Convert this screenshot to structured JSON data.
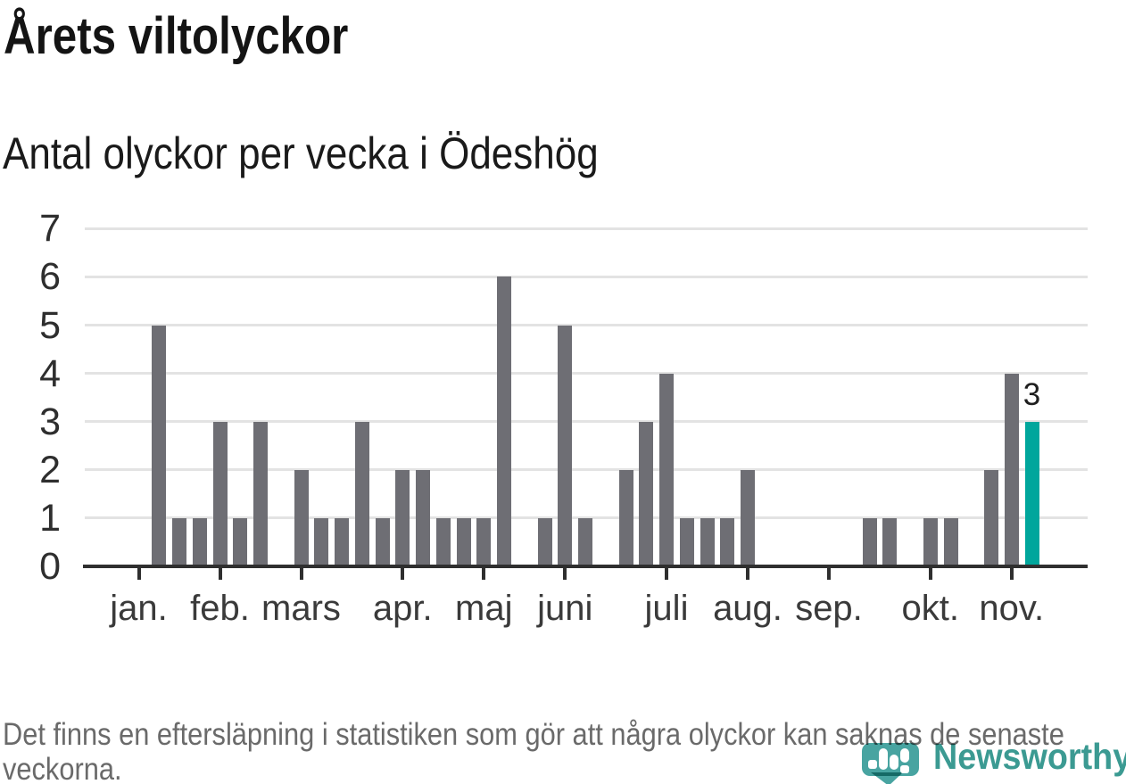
{
  "header": {
    "title": "Årets viltolyckor",
    "subtitle": "Antal olyckor per vecka i Ödeshög"
  },
  "chart_data": {
    "type": "bar",
    "title": "Årets viltolyckor",
    "subtitle": "Antal olyckor per vecka i Ödeshög",
    "x_unit": "week (jan.–nov.)",
    "ylabel": "",
    "xlabel": "",
    "values": [
      0,
      5,
      1,
      1,
      3,
      1,
      3,
      0,
      2,
      1,
      1,
      3,
      1,
      2,
      2,
      1,
      1,
      1,
      6,
      0,
      1,
      5,
      1,
      0,
      2,
      3,
      4,
      1,
      1,
      1,
      2,
      0,
      0,
      0,
      0,
      0,
      1,
      1,
      0,
      1,
      1,
      0,
      2,
      4,
      3
    ],
    "month_ticks": [
      {
        "week_index": 0,
        "label": "jan."
      },
      {
        "week_index": 4,
        "label": "feb."
      },
      {
        "week_index": 8,
        "label": "mars"
      },
      {
        "week_index": 13,
        "label": "apr."
      },
      {
        "week_index": 17,
        "label": "maj"
      },
      {
        "week_index": 21,
        "label": "juni"
      },
      {
        "week_index": 26,
        "label": "juli"
      },
      {
        "week_index": 30,
        "label": "aug."
      },
      {
        "week_index": 34,
        "label": "sep."
      },
      {
        "week_index": 39,
        "label": "okt."
      },
      {
        "week_index": 43,
        "label": "nov."
      }
    ],
    "yticks": [
      0,
      1,
      2,
      3,
      4,
      5,
      6,
      7
    ],
    "ylim": [
      0,
      7
    ],
    "grid": true,
    "legend_position": "none",
    "bar_color": "#6e6e74",
    "highlight_index": 44,
    "highlight_color": "#00a69c",
    "highlight_label": "3",
    "axis_color": "#2f2f2f",
    "gridline_color": "#e3e3e3"
  },
  "footer": {
    "note": "Det finns en eftersläpning i statistiken som gör att några olyckor kan saknas de senaste veckorna.",
    "logo": {
      "brand": "Newsworthy",
      "icon": "newsworthy-speech-bubble-bar-chart-icon",
      "brand_color": "#3b9a92",
      "icon_color": "#48a4a1"
    }
  }
}
